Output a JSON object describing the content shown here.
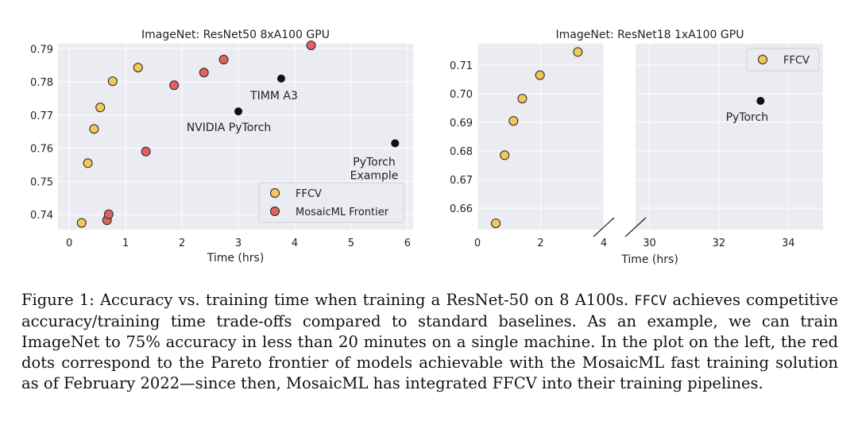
{
  "chart_data": [
    {
      "type": "scatter",
      "title": "ImageNet: ResNet50 8xA100 GPU",
      "xlabel": "Time (hrs)",
      "ylabel": "",
      "xlim": [
        -0.2,
        6.1
      ],
      "ylim": [
        0.7355,
        0.7915
      ],
      "xticks": [
        0,
        1,
        2,
        3,
        4,
        5,
        6
      ],
      "yticks": [
        0.74,
        0.75,
        0.76,
        0.77,
        0.78,
        0.79
      ],
      "ytick_labels": [
        "0.74",
        "0.75",
        "0.76",
        "0.77",
        "0.78",
        "0.79"
      ],
      "grid": true,
      "legend_position": "lower-right",
      "series": [
        {
          "name": "FFCV",
          "color": "#f2c85b",
          "points": [
            [
              0.22,
              0.7375
            ],
            [
              0.33,
              0.7555
            ],
            [
              0.44,
              0.7658
            ],
            [
              0.55,
              0.7723
            ],
            [
              0.77,
              0.7802
            ],
            [
              1.22,
              0.7843
            ]
          ]
        },
        {
          "name": "MosaicML Frontier",
          "color": "#de6262",
          "points": [
            [
              0.67,
              0.7383
            ],
            [
              0.7,
              0.7401
            ],
            [
              1.36,
              0.759
            ],
            [
              1.86,
              0.779
            ],
            [
              2.39,
              0.7828
            ],
            [
              2.74,
              0.7867
            ],
            [
              4.29,
              0.791
            ]
          ]
        }
      ],
      "baselines": {
        "color": "#111111",
        "points": [
          [
            3.0,
            0.7711
          ],
          [
            3.76,
            0.781
          ],
          [
            5.78,
            0.7615
          ]
        ]
      },
      "annotations": [
        {
          "lines": [
            "TIMM A3"
          ],
          "x": 3.76,
          "y": 0.781
        },
        {
          "lines": [
            "NVIDIA PyTorch"
          ],
          "x": 3.0,
          "y": 0.7711
        },
        {
          "lines": [
            "PyTorch",
            "Example"
          ],
          "x": 5.78,
          "y": 0.7615
        }
      ]
    },
    {
      "type": "scatter",
      "title": "ImageNet: ResNet18 1xA100 GPU",
      "xlabel": "Time (hrs)",
      "ylabel": "",
      "broken_x_axis": true,
      "xlim_left": [
        0,
        4
      ],
      "xlim_right": [
        29.6,
        35
      ],
      "xticks_left": [
        0,
        2,
        4
      ],
      "xticks_right": [
        30,
        32,
        34
      ],
      "ylim": [
        0.6525,
        0.7175
      ],
      "yticks": [
        0.66,
        0.67,
        0.68,
        0.69,
        0.7,
        0.71
      ],
      "ytick_labels": [
        "0.66",
        "0.67",
        "0.68",
        "0.69",
        "0.70",
        "0.71"
      ],
      "grid": true,
      "legend_position": "top-right",
      "series": [
        {
          "name": "FFCV",
          "color": "#f2c85b",
          "points": [
            [
              0.58,
              0.6547
            ],
            [
              0.86,
              0.6785
            ],
            [
              1.14,
              0.6905
            ],
            [
              1.42,
              0.6983
            ],
            [
              1.98,
              0.7065
            ],
            [
              3.18,
              0.7146
            ]
          ]
        }
      ],
      "baselines": {
        "color": "#111111",
        "points": [
          [
            33.2,
            0.6975
          ]
        ]
      },
      "annotations": [
        {
          "lines": [
            "PyTorch"
          ],
          "x": 33.2,
          "y": 0.6975
        }
      ]
    }
  ],
  "caption": {
    "label": "Figure 1: Accuracy vs.  training time when training a ResNet-50 on 8 A100s.",
    "code": "FFCV",
    "text": "achieves competitive accuracy/training time trade-offs compared to standard baselines. As an example, we can train ImageNet to 75% accuracy in less than 20 minutes on a single machine. In the plot on the left, the red dots correspond to the Pareto frontier of models achievable with the MosaicML fast training solution as of February 2022—since then, MosaicML has integrated FFCV into their training pipelines."
  }
}
